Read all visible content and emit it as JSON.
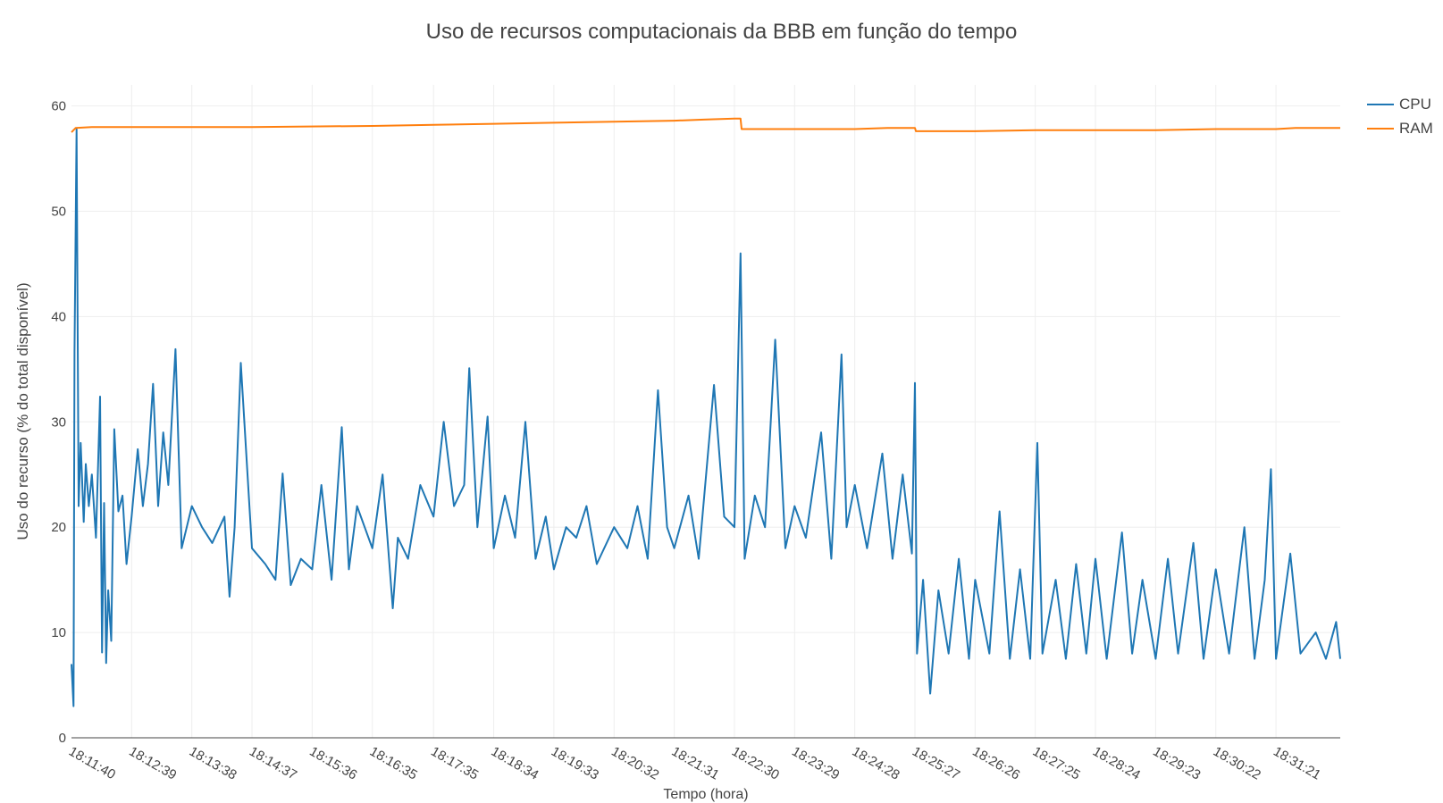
{
  "chart_data": {
    "type": "line",
    "title": "Uso de recursos computacionais da BBB em função do tempo",
    "xlabel": "Tempo (hora)",
    "ylabel": "Uso do recurso (% do total disponível)",
    "ylim": [
      0,
      62
    ],
    "yticks": [
      0,
      10,
      20,
      30,
      40,
      50,
      60
    ],
    "xlim": [
      "18:11:40",
      "18:32:24"
    ],
    "xticks": [
      "18:11:40",
      "18:12:39",
      "18:13:38",
      "18:14:37",
      "18:15:36",
      "18:16:35",
      "18:17:35",
      "18:18:34",
      "18:19:33",
      "18:20:32",
      "18:21:31",
      "18:22:30",
      "18:23:29",
      "18:24:28",
      "18:25:27",
      "18:26:26",
      "18:27:25",
      "18:28:24",
      "18:29:23",
      "18:30:22",
      "18:31:21"
    ],
    "grid": true,
    "legend_position": "top-right",
    "series": [
      {
        "name": "CPU",
        "color": "#1f77b4",
        "points": [
          [
            "18:11:40",
            7.0
          ],
          [
            "18:11:42",
            3.0
          ],
          [
            "18:11:43",
            36.7
          ],
          [
            "18:11:45",
            57.8
          ],
          [
            "18:11:47",
            22.0
          ],
          [
            "18:11:49",
            28.0
          ],
          [
            "18:11:52",
            20.5
          ],
          [
            "18:11:54",
            26.0
          ],
          [
            "18:11:57",
            22.0
          ],
          [
            "18:12:00",
            25.0
          ],
          [
            "18:12:04",
            19.0
          ],
          [
            "18:12:08",
            32.4
          ],
          [
            "18:12:10",
            8.1
          ],
          [
            "18:12:12",
            22.3
          ],
          [
            "18:12:14",
            7.1
          ],
          [
            "18:12:16",
            14.0
          ],
          [
            "18:12:19",
            9.2
          ],
          [
            "18:12:22",
            29.3
          ],
          [
            "18:12:26",
            21.5
          ],
          [
            "18:12:30",
            23.0
          ],
          [
            "18:12:34",
            16.5
          ],
          [
            "18:12:39",
            21.0
          ],
          [
            "18:12:45",
            27.4
          ],
          [
            "18:12:50",
            22.0
          ],
          [
            "18:12:55",
            26.0
          ],
          [
            "18:13:00",
            33.6
          ],
          [
            "18:13:05",
            22.0
          ],
          [
            "18:13:10",
            29.0
          ],
          [
            "18:13:15",
            24.0
          ],
          [
            "18:13:22",
            36.9
          ],
          [
            "18:13:28",
            18.0
          ],
          [
            "18:13:38",
            22.0
          ],
          [
            "18:13:48",
            20.0
          ],
          [
            "18:13:58",
            18.5
          ],
          [
            "18:14:10",
            21.0
          ],
          [
            "18:14:15",
            13.4
          ],
          [
            "18:14:20",
            20.0
          ],
          [
            "18:14:26",
            35.6
          ],
          [
            "18:14:37",
            18.0
          ],
          [
            "18:14:50",
            16.5
          ],
          [
            "18:15:00",
            15.0
          ],
          [
            "18:15:07",
            25.1
          ],
          [
            "18:15:15",
            14.5
          ],
          [
            "18:15:25",
            17.0
          ],
          [
            "18:15:36",
            16.0
          ],
          [
            "18:15:45",
            24.0
          ],
          [
            "18:15:55",
            15.0
          ],
          [
            "18:16:05",
            29.5
          ],
          [
            "18:16:12",
            16.0
          ],
          [
            "18:16:20",
            22.0
          ],
          [
            "18:16:35",
            18.0
          ],
          [
            "18:16:45",
            25.0
          ],
          [
            "18:16:55",
            12.3
          ],
          [
            "18:17:00",
            19.0
          ],
          [
            "18:17:10",
            17.0
          ],
          [
            "18:17:22",
            24.0
          ],
          [
            "18:17:35",
            21.0
          ],
          [
            "18:17:45",
            30.0
          ],
          [
            "18:17:55",
            22.0
          ],
          [
            "18:18:05",
            24.0
          ],
          [
            "18:18:10",
            35.1
          ],
          [
            "18:18:18",
            20.0
          ],
          [
            "18:18:28",
            30.5
          ],
          [
            "18:18:34",
            18.0
          ],
          [
            "18:18:45",
            23.0
          ],
          [
            "18:18:55",
            19.0
          ],
          [
            "18:19:05",
            30.0
          ],
          [
            "18:19:15",
            17.0
          ],
          [
            "18:19:25",
            21.0
          ],
          [
            "18:19:33",
            16.0
          ],
          [
            "18:19:45",
            20.0
          ],
          [
            "18:19:55",
            19.0
          ],
          [
            "18:20:05",
            22.0
          ],
          [
            "18:20:15",
            16.5
          ],
          [
            "18:20:32",
            20.0
          ],
          [
            "18:20:45",
            18.0
          ],
          [
            "18:20:55",
            22.0
          ],
          [
            "18:21:05",
            17.0
          ],
          [
            "18:21:15",
            33.0
          ],
          [
            "18:21:24",
            20.0
          ],
          [
            "18:21:31",
            18.0
          ],
          [
            "18:21:45",
            23.0
          ],
          [
            "18:21:55",
            17.0
          ],
          [
            "18:22:10",
            33.5
          ],
          [
            "18:22:20",
            21.0
          ],
          [
            "18:22:30",
            20.0
          ],
          [
            "18:22:36",
            46.0
          ],
          [
            "18:22:40",
            17.0
          ],
          [
            "18:22:50",
            23.0
          ],
          [
            "18:23:00",
            20.0
          ],
          [
            "18:23:10",
            37.8
          ],
          [
            "18:23:20",
            18.0
          ],
          [
            "18:23:29",
            22.0
          ],
          [
            "18:23:40",
            19.0
          ],
          [
            "18:23:55",
            29.0
          ],
          [
            "18:24:05",
            17.0
          ],
          [
            "18:24:15",
            36.4
          ],
          [
            "18:24:20",
            20.0
          ],
          [
            "18:24:28",
            24.0
          ],
          [
            "18:24:40",
            18.0
          ],
          [
            "18:24:55",
            27.0
          ],
          [
            "18:25:05",
            17.0
          ],
          [
            "18:25:15",
            25.0
          ],
          [
            "18:25:24",
            17.5
          ],
          [
            "18:25:27",
            33.7
          ],
          [
            "18:25:29",
            8.0
          ],
          [
            "18:25:35",
            15.0
          ],
          [
            "18:25:42",
            4.2
          ],
          [
            "18:25:50",
            14.0
          ],
          [
            "18:26:00",
            8.0
          ],
          [
            "18:26:10",
            17.0
          ],
          [
            "18:26:20",
            7.5
          ],
          [
            "18:26:26",
            15.0
          ],
          [
            "18:26:40",
            8.0
          ],
          [
            "18:26:50",
            21.5
          ],
          [
            "18:27:00",
            7.5
          ],
          [
            "18:27:10",
            16.0
          ],
          [
            "18:27:20",
            7.5
          ],
          [
            "18:27:27",
            28.0
          ],
          [
            "18:27:32",
            8.0
          ],
          [
            "18:27:45",
            15.0
          ],
          [
            "18:27:55",
            7.5
          ],
          [
            "18:28:05",
            16.5
          ],
          [
            "18:28:15",
            8.0
          ],
          [
            "18:28:24",
            17.0
          ],
          [
            "18:28:35",
            7.5
          ],
          [
            "18:28:50",
            19.5
          ],
          [
            "18:29:00",
            8.0
          ],
          [
            "18:29:10",
            15.0
          ],
          [
            "18:29:23",
            7.5
          ],
          [
            "18:29:35",
            17.0
          ],
          [
            "18:29:45",
            8.0
          ],
          [
            "18:30:00",
            18.5
          ],
          [
            "18:30:10",
            7.5
          ],
          [
            "18:30:22",
            16.0
          ],
          [
            "18:30:35",
            8.0
          ],
          [
            "18:30:50",
            20.0
          ],
          [
            "18:31:00",
            7.5
          ],
          [
            "18:31:10",
            15.0
          ],
          [
            "18:31:16",
            25.5
          ],
          [
            "18:31:21",
            7.5
          ],
          [
            "18:31:35",
            17.5
          ],
          [
            "18:31:45",
            8.0
          ],
          [
            "18:32:00",
            10.0
          ],
          [
            "18:32:10",
            7.5
          ],
          [
            "18:32:20",
            11.0
          ],
          [
            "18:32:24",
            7.5
          ]
        ]
      },
      {
        "name": "RAM",
        "color": "#ff7f0e",
        "points": [
          [
            "18:11:40",
            57.5
          ],
          [
            "18:11:44",
            57.9
          ],
          [
            "18:12:00",
            58.0
          ],
          [
            "18:14:37",
            58.0
          ],
          [
            "18:16:35",
            58.1
          ],
          [
            "18:17:35",
            58.2
          ],
          [
            "18:18:34",
            58.3
          ],
          [
            "18:19:33",
            58.4
          ],
          [
            "18:20:32",
            58.5
          ],
          [
            "18:21:31",
            58.6
          ],
          [
            "18:22:00",
            58.7
          ],
          [
            "18:22:30",
            58.8
          ],
          [
            "18:22:36",
            58.8
          ],
          [
            "18:22:37",
            57.8
          ],
          [
            "18:23:29",
            57.8
          ],
          [
            "18:24:28",
            57.8
          ],
          [
            "18:25:00",
            57.9
          ],
          [
            "18:25:27",
            57.9
          ],
          [
            "18:25:28",
            57.6
          ],
          [
            "18:26:26",
            57.6
          ],
          [
            "18:27:25",
            57.7
          ],
          [
            "18:28:24",
            57.7
          ],
          [
            "18:29:23",
            57.7
          ],
          [
            "18:30:22",
            57.8
          ],
          [
            "18:31:21",
            57.8
          ],
          [
            "18:31:40",
            57.9
          ],
          [
            "18:32:24",
            57.9
          ]
        ]
      }
    ]
  }
}
